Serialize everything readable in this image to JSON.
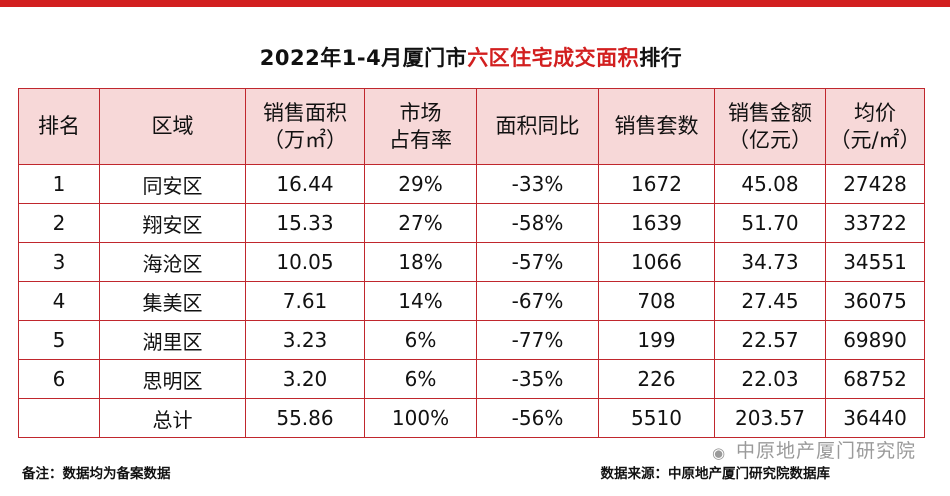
{
  "title": {
    "prefix": "2022年1-4月厦门市",
    "highlight": "六区住宅成交面积",
    "suffix": "排行"
  },
  "headers": [
    [
      "排名"
    ],
    [
      "区域"
    ],
    [
      "销售面积",
      "（万㎡）"
    ],
    [
      "市场",
      "占有率"
    ],
    [
      "面积同比"
    ],
    [
      "销售套数"
    ],
    [
      "销售金额",
      "（亿元）"
    ],
    [
      "均价",
      "（元/㎡）"
    ]
  ],
  "rows": [
    [
      "1",
      "同安区",
      "16.44",
      "29%",
      "-33%",
      "1672",
      "45.08",
      "27428"
    ],
    [
      "2",
      "翔安区",
      "15.33",
      "27%",
      "-58%",
      "1639",
      "51.70",
      "33722"
    ],
    [
      "3",
      "海沧区",
      "10.05",
      "18%",
      "-57%",
      "1066",
      "34.73",
      "34551"
    ],
    [
      "4",
      "集美区",
      "7.61",
      "14%",
      "-67%",
      "708",
      "27.45",
      "36075"
    ],
    [
      "5",
      "湖里区",
      "3.23",
      "6%",
      "-77%",
      "199",
      "22.57",
      "69890"
    ],
    [
      "6",
      "思明区",
      "3.20",
      "6%",
      "-35%",
      "226",
      "22.03",
      "68752"
    ],
    [
      "",
      "总计",
      "55.86",
      "100%",
      "-56%",
      "5510",
      "203.57",
      "36440"
    ]
  ],
  "footer": {
    "note": "备注：数据均为备案数据",
    "source": "数据来源：中原地产厦门研究院数据库",
    "watermark": "中原地产厦门研究院",
    "watermark_icon": "wechat-icon"
  },
  "colors": {
    "accent": "#d21f1f",
    "header_bg": "#f7d8d8",
    "border": "#c0272d"
  }
}
